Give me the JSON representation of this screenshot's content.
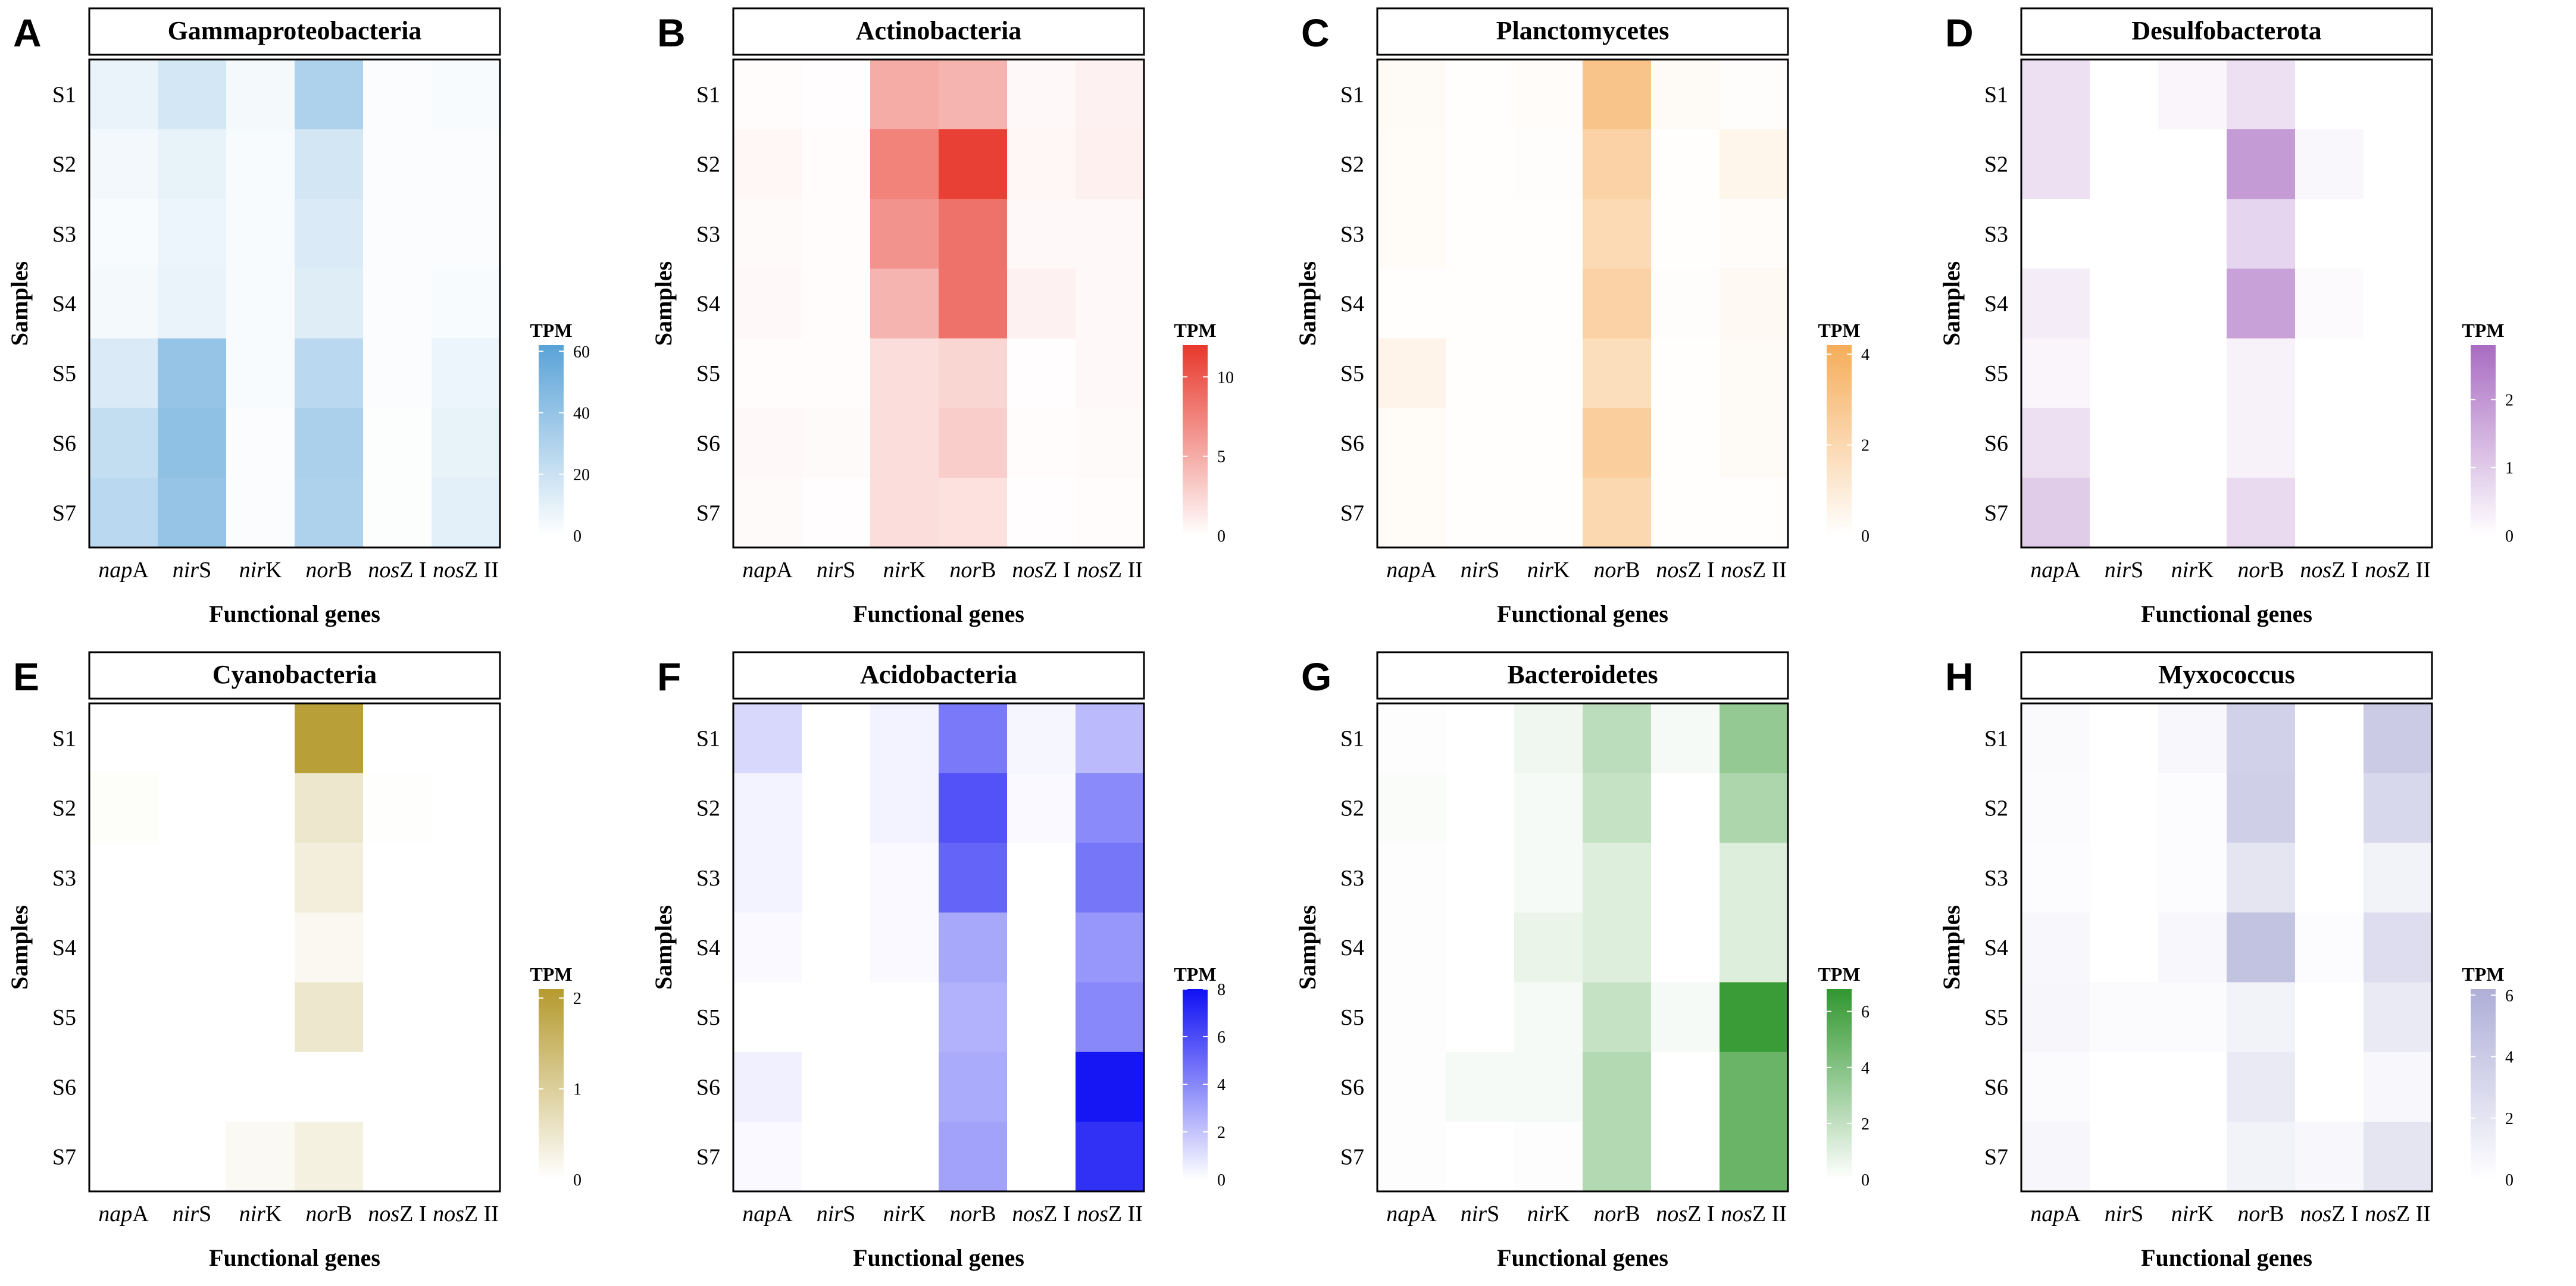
{
  "figure": {
    "rows": [
      "S1",
      "S2",
      "S3",
      "S4",
      "S5",
      "S6",
      "S7"
    ],
    "genes": [
      {
        "pre": "nap",
        "suf": "A"
      },
      {
        "pre": "nir",
        "suf": "S"
      },
      {
        "pre": "nir",
        "suf": "K"
      },
      {
        "pre": "nor",
        "suf": "B"
      },
      {
        "pre": "nos",
        "suf": "Z I"
      },
      {
        "pre": "nos",
        "suf": "Z II"
      }
    ],
    "ylabel": "Samples",
    "xlabel": "Functional genes",
    "legend_title": "TPM"
  },
  "chart_data": [
    {
      "type": "heatmap",
      "label": "A",
      "title": "Gammaproteobacteria",
      "color": "#5aa3d8",
      "vmax": 62,
      "ticks": [
        0,
        20,
        40,
        60
      ],
      "rows": [
        "S1",
        "S2",
        "S3",
        "S4",
        "S5",
        "S6",
        "S7"
      ],
      "columns": [
        "napA",
        "nirS",
        "nirK",
        "norB",
        "nosZ I",
        "nosZ II"
      ],
      "values": [
        [
          8,
          16,
          4,
          30,
          2,
          3
        ],
        [
          5,
          9,
          3,
          17,
          2,
          2
        ],
        [
          3,
          7,
          3,
          14,
          2,
          2
        ],
        [
          4,
          8,
          3,
          12,
          2,
          3
        ],
        [
          14,
          40,
          3,
          26,
          2,
          7
        ],
        [
          22,
          42,
          2,
          32,
          1,
          9
        ],
        [
          26,
          40,
          2,
          30,
          1,
          10
        ]
      ]
    },
    {
      "type": "heatmap",
      "label": "B",
      "title": "Actinobacteria",
      "color": "#e8382c",
      "vmax": 12,
      "ticks": [
        0,
        5,
        10
      ],
      "rows": [
        "S1",
        "S2",
        "S3",
        "S4",
        "S5",
        "S6",
        "S7"
      ],
      "columns": [
        "napA",
        "nirS",
        "nirK",
        "norB",
        "nosZ I",
        "nosZ II"
      ],
      "values": [
        [
          0.2,
          0.1,
          5.0,
          4.5,
          0.4,
          0.8
        ],
        [
          0.5,
          0.2,
          7.5,
          11.5,
          0.5,
          0.9
        ],
        [
          0.3,
          0.2,
          6.5,
          8.5,
          0.4,
          0.4
        ],
        [
          0.4,
          0.2,
          4.5,
          8.5,
          0.8,
          0.4
        ],
        [
          0.2,
          0.2,
          2.0,
          2.5,
          0.1,
          0.4
        ],
        [
          0.4,
          0.3,
          2.0,
          3.0,
          0.2,
          0.3
        ],
        [
          0.3,
          0.1,
          2.0,
          1.8,
          0.1,
          0.2
        ]
      ]
    },
    {
      "type": "heatmap",
      "label": "C",
      "title": "Planctomycetes",
      "color": "#f6ad5a",
      "vmax": 4.2,
      "ticks": [
        0,
        2,
        4
      ],
      "rows": [
        "S1",
        "S2",
        "S3",
        "S4",
        "S5",
        "S6",
        "S7"
      ],
      "columns": [
        "napA",
        "nirS",
        "nirK",
        "norB",
        "nosZ I",
        "nosZ II"
      ],
      "values": [
        [
          0.25,
          0.05,
          0.15,
          3.0,
          0.25,
          0.1
        ],
        [
          0.2,
          0.05,
          0.1,
          2.3,
          0.05,
          0.5
        ],
        [
          0.2,
          0.05,
          0.05,
          1.9,
          0.05,
          0.15
        ],
        [
          0.05,
          0.05,
          0.05,
          2.3,
          0.1,
          0.3
        ],
        [
          0.55,
          0.05,
          0.05,
          1.7,
          0.05,
          0.25
        ],
        [
          0.2,
          0.05,
          0.05,
          2.5,
          0.05,
          0.25
        ],
        [
          0.2,
          0.05,
          0.05,
          2.0,
          0.05,
          0.05
        ]
      ]
    },
    {
      "type": "heatmap",
      "label": "D",
      "title": "Desulfobacterota",
      "color": "#a96cc2",
      "vmax": 2.8,
      "ticks": [
        0,
        1,
        2
      ],
      "rows": [
        "S1",
        "S2",
        "S3",
        "S4",
        "S5",
        "S6",
        "S7"
      ],
      "columns": [
        "napA",
        "nirS",
        "nirK",
        "norB",
        "nosZ I",
        "nosZ II"
      ],
      "values": [
        [
          0.6,
          0,
          0.2,
          0.6,
          0,
          0
        ],
        [
          0.6,
          0,
          0,
          1.9,
          0.15,
          0
        ],
        [
          0,
          0,
          0,
          0.8,
          0,
          0
        ],
        [
          0.35,
          0,
          0,
          1.8,
          0.1,
          0
        ],
        [
          0.2,
          0,
          0,
          0.25,
          0,
          0
        ],
        [
          0.6,
          0,
          0,
          0.25,
          0,
          0
        ],
        [
          1.0,
          0,
          0,
          0.7,
          0,
          0
        ]
      ]
    },
    {
      "type": "heatmap",
      "label": "E",
      "title": "Cyanobacteria",
      "color": "#b59a2e",
      "vmax": 2.1,
      "ticks": [
        0,
        1,
        2
      ],
      "rows": [
        "S1",
        "S2",
        "S3",
        "S4",
        "S5",
        "S6",
        "S7"
      ],
      "columns": [
        "napA",
        "nirS",
        "nirK",
        "norB",
        "nosZ I",
        "nosZ II"
      ],
      "values": [
        [
          0,
          0,
          0,
          2.0,
          0,
          0
        ],
        [
          0.05,
          0,
          0,
          0.5,
          0.03,
          0
        ],
        [
          0,
          0,
          0,
          0.35,
          0,
          0
        ],
        [
          0,
          0,
          0,
          0.15,
          0,
          0
        ],
        [
          0,
          0,
          0,
          0.5,
          0,
          0
        ],
        [
          0,
          0,
          0,
          0,
          0,
          0
        ],
        [
          0,
          0,
          0.12,
          0.3,
          0,
          0
        ]
      ]
    },
    {
      "type": "heatmap",
      "label": "F",
      "title": "Acidobacteria",
      "color": "#1010f5",
      "vmax": 8,
      "ticks": [
        0,
        2,
        4,
        6,
        8
      ],
      "rows": [
        "S1",
        "S2",
        "S3",
        "S4",
        "S5",
        "S6",
        "S7"
      ],
      "columns": [
        "napA",
        "nirS",
        "nirK",
        "norB",
        "nosZ I",
        "nosZ II"
      ],
      "values": [
        [
          1.3,
          0,
          0.4,
          4.5,
          0.3,
          2.3
        ],
        [
          0.4,
          0,
          0.4,
          5.8,
          0.2,
          3.9
        ],
        [
          0.4,
          0,
          0.2,
          5.2,
          0,
          4.6
        ],
        [
          0.2,
          0,
          0.2,
          2.9,
          0,
          3.5
        ],
        [
          0,
          0,
          0,
          2.6,
          0,
          4.0
        ],
        [
          0.5,
          0,
          0,
          2.8,
          0,
          7.8
        ],
        [
          0.2,
          0,
          0,
          3.1,
          0,
          6.9
        ]
      ]
    },
    {
      "type": "heatmap",
      "label": "G",
      "title": "Bacteroidetes",
      "color": "#30972e",
      "vmax": 6.8,
      "ticks": [
        0,
        2,
        4,
        6
      ],
      "rows": [
        "S1",
        "S2",
        "S3",
        "S4",
        "S5",
        "S6",
        "S7"
      ],
      "columns": [
        "napA",
        "nirS",
        "nirK",
        "norB",
        "nosZ I",
        "nosZ II"
      ],
      "values": [
        [
          0.1,
          0,
          0.5,
          2.2,
          0.3,
          3.5
        ],
        [
          0.2,
          0,
          0.3,
          1.9,
          0,
          2.7
        ],
        [
          0.1,
          0,
          0.3,
          1.1,
          0,
          1.1
        ],
        [
          0.1,
          0,
          0.7,
          1.1,
          0,
          1.1
        ],
        [
          0.1,
          0,
          0.3,
          1.9,
          0.3,
          6.5
        ],
        [
          0.1,
          0.3,
          0.3,
          2.5,
          0,
          4.9
        ],
        [
          0.1,
          0,
          0.1,
          2.5,
          0,
          4.9
        ]
      ]
    },
    {
      "type": "heatmap",
      "label": "H",
      "title": "Myxococcus",
      "color": "#aeaed8",
      "vmax": 6.2,
      "ticks": [
        0,
        2,
        4,
        6
      ],
      "rows": [
        "S1",
        "S2",
        "S3",
        "S4",
        "S5",
        "S6",
        "S7"
      ],
      "columns": [
        "napA",
        "nirS",
        "nirK",
        "norB",
        "nosZ I",
        "nosZ II"
      ],
      "values": [
        [
          0.4,
          0,
          0.5,
          3.5,
          0,
          4.0
        ],
        [
          0.3,
          0,
          0.2,
          3.7,
          0,
          3.0
        ],
        [
          0.2,
          0,
          0.2,
          2.0,
          0,
          1.0
        ],
        [
          0.5,
          0,
          0.5,
          4.7,
          0.2,
          2.6
        ],
        [
          0.7,
          0.3,
          0.3,
          1.0,
          0,
          1.6
        ],
        [
          0.3,
          0,
          0,
          1.6,
          0,
          0.5
        ],
        [
          0.6,
          0,
          0,
          1.0,
          0.5,
          2.0
        ]
      ]
    }
  ]
}
